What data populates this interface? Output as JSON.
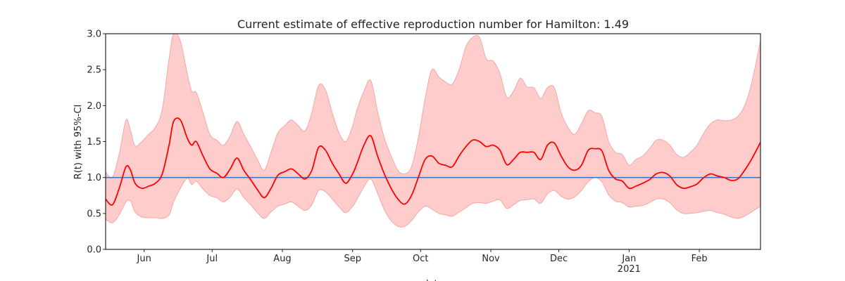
{
  "chart_data": {
    "type": "line",
    "title": "Current estimate of effective reproduction number for Hamilton: 1.49",
    "xlabel": "date",
    "ylabel": "R(t) with 95%-CI",
    "ylim": [
      0.0,
      3.0
    ],
    "xlim": [
      "2020-05-15",
      "2021-02-28"
    ],
    "y_ticks": [
      0.0,
      0.5,
      1.0,
      1.5,
      2.0,
      2.5,
      3.0
    ],
    "y_tick_labels": [
      "0.0",
      "0.5",
      "1.0",
      "1.5",
      "2.0",
      "2.5",
      "3.0"
    ],
    "x_ticks": [
      {
        "date": "2020-06-01",
        "label": "Jun",
        "sublabel": ""
      },
      {
        "date": "2020-07-01",
        "label": "Jul",
        "sublabel": ""
      },
      {
        "date": "2020-08-01",
        "label": "Aug",
        "sublabel": ""
      },
      {
        "date": "2020-09-01",
        "label": "Sep",
        "sublabel": ""
      },
      {
        "date": "2020-10-01",
        "label": "Oct",
        "sublabel": ""
      },
      {
        "date": "2020-11-01",
        "label": "Nov",
        "sublabel": ""
      },
      {
        "date": "2020-12-01",
        "label": "Dec",
        "sublabel": ""
      },
      {
        "date": "2021-01-01",
        "label": "Jan",
        "sublabel": "2021"
      },
      {
        "date": "2021-02-01",
        "label": "Feb",
        "sublabel": ""
      }
    ],
    "reference_line": {
      "y": 1.0,
      "color": "#3a78c4"
    },
    "grid": false,
    "legend": "none",
    "series": [
      {
        "color": "#ff0000",
        "ci_color": "#ffcccc",
        "x": [
          "2020-05-15",
          "2020-05-18",
          "2020-05-21",
          "2020-05-24",
          "2020-05-26",
          "2020-05-28",
          "2020-05-31",
          "2020-06-03",
          "2020-06-06",
          "2020-06-09",
          "2020-06-12",
          "2020-06-14",
          "2020-06-17",
          "2020-06-20",
          "2020-06-22",
          "2020-06-24",
          "2020-06-27",
          "2020-06-30",
          "2020-07-03",
          "2020-07-06",
          "2020-07-09",
          "2020-07-12",
          "2020-07-15",
          "2020-07-18",
          "2020-07-21",
          "2020-07-24",
          "2020-07-27",
          "2020-07-30",
          "2020-08-02",
          "2020-08-05",
          "2020-08-08",
          "2020-08-11",
          "2020-08-14",
          "2020-08-17",
          "2020-08-20",
          "2020-08-23",
          "2020-08-26",
          "2020-08-29",
          "2020-09-01",
          "2020-09-03",
          "2020-09-06",
          "2020-09-09",
          "2020-09-12",
          "2020-09-15",
          "2020-09-18",
          "2020-09-21",
          "2020-09-24",
          "2020-09-27",
          "2020-09-30",
          "2020-10-03",
          "2020-10-06",
          "2020-10-09",
          "2020-10-12",
          "2020-10-15",
          "2020-10-18",
          "2020-10-21",
          "2020-10-24",
          "2020-10-27",
          "2020-10-30",
          "2020-11-02",
          "2020-11-05",
          "2020-11-08",
          "2020-11-11",
          "2020-11-14",
          "2020-11-17",
          "2020-11-20",
          "2020-11-23",
          "2020-11-26",
          "2020-11-29",
          "2020-12-02",
          "2020-12-05",
          "2020-12-08",
          "2020-12-11",
          "2020-12-14",
          "2020-12-17",
          "2020-12-20",
          "2020-12-23",
          "2020-12-26",
          "2020-12-29",
          "2021-01-01",
          "2021-01-04",
          "2021-01-07",
          "2021-01-10",
          "2021-01-13",
          "2021-01-16",
          "2021-01-19",
          "2021-01-22",
          "2021-01-25",
          "2021-01-28",
          "2021-01-31",
          "2021-02-03",
          "2021-02-06",
          "2021-02-09",
          "2021-02-12",
          "2021-02-15",
          "2021-02-18",
          "2021-02-21",
          "2021-02-24",
          "2021-02-28"
        ],
        "values": [
          0.7,
          0.62,
          0.85,
          1.15,
          1.1,
          0.92,
          0.85,
          0.88,
          0.92,
          1.05,
          1.45,
          1.78,
          1.8,
          1.55,
          1.45,
          1.5,
          1.3,
          1.12,
          1.06,
          1.0,
          1.12,
          1.27,
          1.1,
          0.97,
          0.83,
          0.72,
          0.85,
          1.03,
          1.08,
          1.12,
          1.05,
          0.98,
          1.1,
          1.42,
          1.38,
          1.2,
          1.05,
          0.92,
          1.05,
          1.2,
          1.45,
          1.58,
          1.3,
          1.05,
          0.85,
          0.7,
          0.63,
          0.75,
          1.0,
          1.25,
          1.3,
          1.2,
          1.17,
          1.15,
          1.3,
          1.43,
          1.52,
          1.5,
          1.43,
          1.45,
          1.38,
          1.18,
          1.25,
          1.35,
          1.35,
          1.35,
          1.25,
          1.45,
          1.48,
          1.3,
          1.15,
          1.1,
          1.17,
          1.38,
          1.4,
          1.37,
          1.1,
          0.98,
          0.95,
          0.85,
          0.88,
          0.92,
          0.97,
          1.05,
          1.07,
          1.02,
          0.9,
          0.85,
          0.87,
          0.91,
          1.0,
          1.05,
          1.02,
          1.0,
          0.96,
          0.98,
          1.1,
          1.25,
          1.49
        ],
        "ci_lower": [
          0.42,
          0.37,
          0.48,
          0.66,
          0.67,
          0.52,
          0.45,
          0.44,
          0.44,
          0.43,
          0.48,
          0.66,
          0.85,
          0.99,
          0.9,
          0.95,
          0.84,
          0.75,
          0.72,
          0.66,
          0.73,
          0.84,
          0.72,
          0.62,
          0.51,
          0.43,
          0.52,
          0.6,
          0.63,
          0.66,
          0.6,
          0.54,
          0.62,
          0.82,
          0.8,
          0.7,
          0.59,
          0.51,
          0.6,
          0.7,
          0.87,
          0.98,
          0.78,
          0.55,
          0.4,
          0.32,
          0.32,
          0.4,
          0.52,
          0.6,
          0.56,
          0.5,
          0.48,
          0.46,
          0.52,
          0.58,
          0.64,
          0.65,
          0.64,
          0.67,
          0.69,
          0.57,
          0.62,
          0.68,
          0.69,
          0.7,
          0.64,
          0.77,
          0.82,
          0.74,
          0.7,
          0.73,
          0.82,
          0.94,
          1.0,
          0.94,
          0.76,
          0.67,
          0.65,
          0.59,
          0.6,
          0.61,
          0.65,
          0.7,
          0.7,
          0.65,
          0.55,
          0.5,
          0.5,
          0.51,
          0.53,
          0.54,
          0.51,
          0.49,
          0.45,
          0.43,
          0.46,
          0.52,
          0.6
        ],
        "ci_upper": [
          1.08,
          1.0,
          1.33,
          1.8,
          1.65,
          1.44,
          1.5,
          1.6,
          1.7,
          1.95,
          2.65,
          3.0,
          2.9,
          2.45,
          2.2,
          2.18,
          1.9,
          1.6,
          1.52,
          1.45,
          1.58,
          1.78,
          1.6,
          1.43,
          1.25,
          1.1,
          1.35,
          1.62,
          1.72,
          1.8,
          1.72,
          1.65,
          1.9,
          2.28,
          2.22,
          1.9,
          1.62,
          1.5,
          1.72,
          1.95,
          2.2,
          2.35,
          1.92,
          1.55,
          1.3,
          1.1,
          1.05,
          1.15,
          1.55,
          2.1,
          2.5,
          2.4,
          2.33,
          2.3,
          2.5,
          2.82,
          2.95,
          2.95,
          2.65,
          2.62,
          2.45,
          2.12,
          2.2,
          2.38,
          2.26,
          2.25,
          2.1,
          2.25,
          2.25,
          1.9,
          1.7,
          1.6,
          1.75,
          1.93,
          1.9,
          1.85,
          1.5,
          1.35,
          1.32,
          1.17,
          1.25,
          1.3,
          1.4,
          1.52,
          1.52,
          1.45,
          1.32,
          1.28,
          1.35,
          1.45,
          1.62,
          1.75,
          1.8,
          1.79,
          1.8,
          1.85,
          2.0,
          2.3,
          2.9
        ]
      }
    ]
  }
}
